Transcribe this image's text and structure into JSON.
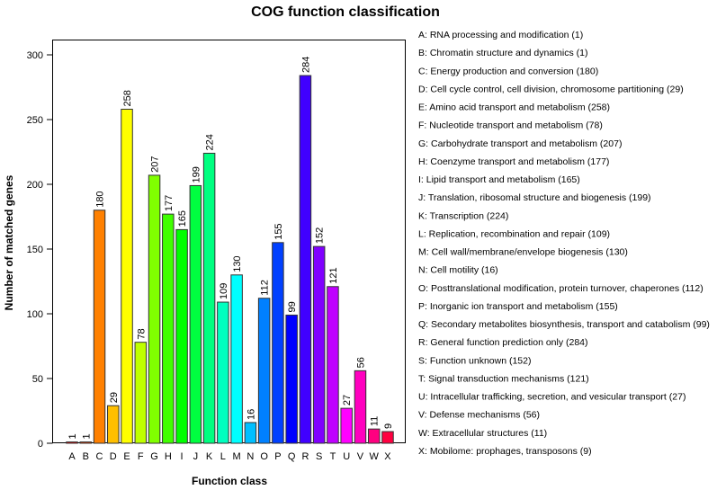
{
  "chart_data": {
    "type": "bar",
    "title": "COG function classification",
    "xlabel": "Function class",
    "ylabel": "Number of matched genes",
    "ylim": [
      0,
      300
    ],
    "yticks": [
      0,
      50,
      100,
      150,
      200,
      250,
      300
    ],
    "grid": false,
    "legend_placement": "right",
    "categories": [
      "A",
      "B",
      "C",
      "D",
      "E",
      "F",
      "G",
      "H",
      "I",
      "J",
      "K",
      "L",
      "M",
      "N",
      "O",
      "P",
      "Q",
      "R",
      "S",
      "T",
      "U",
      "V",
      "W",
      "X"
    ],
    "values": [
      1,
      1,
      180,
      29,
      258,
      78,
      207,
      177,
      165,
      199,
      224,
      109,
      130,
      16,
      112,
      155,
      99,
      284,
      152,
      121,
      27,
      56,
      11,
      9
    ],
    "colors": [
      "#FF0000",
      "#FF4000",
      "#FF8000",
      "#FFBF00",
      "#FFFF00",
      "#BFFF00",
      "#80FF00",
      "#40FF00",
      "#00FF00",
      "#00FF40",
      "#00FF80",
      "#00FFBF",
      "#00FFFF",
      "#00BFFF",
      "#0080FF",
      "#0040FF",
      "#0000FF",
      "#4000FF",
      "#8000FF",
      "#BF00FF",
      "#FF00FF",
      "#FF00BF",
      "#FF0080",
      "#FF0040"
    ],
    "legend": [
      "A: RNA processing and modification  (1)",
      "B: Chromatin structure and dynamics  (1)",
      "C: Energy production and conversion  (180)",
      "D: Cell cycle control, cell division, chromosome partitioning  (29)",
      "E: Amino acid transport and metabolism  (258)",
      "F: Nucleotide transport and metabolism  (78)",
      "G: Carbohydrate transport and metabolism  (207)",
      "H: Coenzyme transport and metabolism  (177)",
      "I: Lipid transport and metabolism  (165)",
      "J: Translation, ribosomal structure and biogenesis  (199)",
      "K: Transcription  (224)",
      "L: Replication, recombination and repair  (109)",
      "M: Cell wall/membrane/envelope biogenesis  (130)",
      "N: Cell motility  (16)",
      "O: Posttranslational modification, protein turnover, chaperones  (112)",
      "P: Inorganic ion transport and metabolism  (155)",
      "Q: Secondary metabolites biosynthesis, transport and catabolism  (99)",
      "R: General function prediction only  (284)",
      "S: Function unknown  (152)",
      "T: Signal transduction mechanisms  (121)",
      "U: Intracellular trafficking, secretion, and vesicular transport  (27)",
      "V: Defense mechanisms  (56)",
      "W: Extracellular structures  (11)",
      "X: Mobilome: prophages, transposons  (9)"
    ]
  }
}
